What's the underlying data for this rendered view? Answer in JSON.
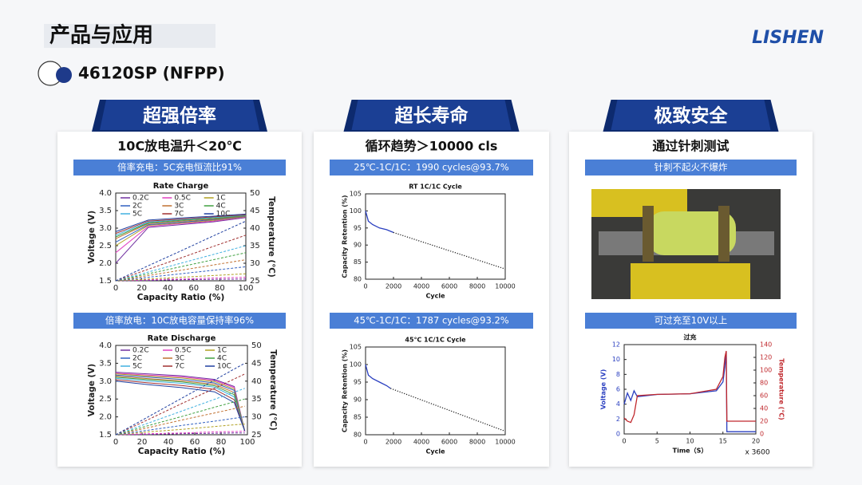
{
  "header": {
    "title": "产品与应用",
    "logo": "LISHEN",
    "subtitle": "46120SP (NFPP)"
  },
  "panels": [
    {
      "tab": "超强倍率",
      "headline": "10C放电温升＜20℃",
      "banners": [
        "倍率充电：5C充电恒流比91%",
        "倍率放电：10C放电容量保持率96%"
      ]
    },
    {
      "tab": "超长寿命",
      "headline": "循环趋势＞10000 cls",
      "banners": [
        "25℃-1C/1C：1990 cycles@93.7%",
        "45℃-1C/1C：1787 cycles@93.2%"
      ]
    },
    {
      "tab": "极致安全",
      "headline": "通过针刺测试",
      "banners": [
        "针刺不起火不爆炸",
        "可过充至10V以上"
      ]
    }
  ],
  "chart_data": [
    {
      "type": "line",
      "title": "Rate Charge",
      "x_label": "Capacity Ratio (%)",
      "y_label": "Voltage (V)",
      "y2_label": "Temperature (℃)",
      "xlim": [
        0,
        100
      ],
      "xticks": [
        0,
        20,
        40,
        60,
        80,
        100
      ],
      "ylim": [
        1.5,
        4.0
      ],
      "yticks": [
        1.5,
        {
          "value": 2,
          "label": "2.0"
        },
        2.5,
        {
          "value": 3,
          "label": "3.0"
        },
        3.5,
        {
          "value": 4,
          "label": "4.0"
        }
      ],
      "y2lim": [
        25,
        50
      ],
      "y2ticks": [
        25,
        30,
        35,
        40,
        45,
        50
      ],
      "legend": "top-left",
      "x": [
        0,
        25,
        50,
        75,
        100
      ],
      "series": [
        {
          "name": "0.2C",
          "color": "#7030a0",
          "values": [
            2.0,
            3.02,
            3.1,
            3.18,
            3.3
          ]
        },
        {
          "name": "0.5C",
          "color": "#e040c0",
          "values": [
            2.3,
            3.05,
            3.13,
            3.2,
            3.32
          ]
        },
        {
          "name": "1C",
          "color": "#b0a020",
          "values": [
            2.5,
            3.08,
            3.15,
            3.22,
            3.33
          ]
        },
        {
          "name": "2C",
          "color": "#3060c0",
          "values": [
            2.6,
            3.1,
            3.17,
            3.24,
            3.34
          ]
        },
        {
          "name": "3C",
          "color": "#c07030",
          "values": [
            2.7,
            3.13,
            3.2,
            3.26,
            3.35
          ]
        },
        {
          "name": "4C",
          "color": "#40a040",
          "values": [
            2.75,
            3.15,
            3.22,
            3.28,
            3.36
          ]
        },
        {
          "name": "5C",
          "color": "#40b0e0",
          "values": [
            2.8,
            3.17,
            3.24,
            3.3,
            3.37
          ]
        },
        {
          "name": "7C",
          "color": "#a03030",
          "values": [
            2.85,
            3.2,
            3.26,
            3.32,
            3.38
          ]
        },
        {
          "name": "10C",
          "color": "#2040a0",
          "values": [
            2.9,
            3.23,
            3.29,
            3.34,
            3.4
          ]
        },
        {
          "color": "#7030a0",
          "style": "dashed",
          "axis": "y2",
          "values": [
            25,
            25.1,
            25.3,
            25.4,
            25.5
          ]
        },
        {
          "color": "#e040c0",
          "style": "dashed",
          "axis": "y2",
          "values": [
            25,
            25.3,
            25.5,
            25.8,
            26
          ]
        },
        {
          "color": "#b0a020",
          "style": "dashed",
          "axis": "y2",
          "values": [
            25,
            25.5,
            26,
            26.5,
            27
          ]
        },
        {
          "color": "#3060c0",
          "style": "dashed",
          "axis": "y2",
          "values": [
            25,
            26,
            27,
            28,
            29
          ]
        },
        {
          "color": "#c07030",
          "style": "dashed",
          "axis": "y2",
          "values": [
            25,
            26.5,
            28,
            29.5,
            31
          ]
        },
        {
          "color": "#40a040",
          "style": "dashed",
          "axis": "y2",
          "values": [
            25,
            27,
            29,
            31,
            33
          ]
        },
        {
          "color": "#40b0e0",
          "style": "dashed",
          "axis": "y2",
          "values": [
            25,
            27.5,
            30,
            32.5,
            35
          ]
        },
        {
          "color": "#a03030",
          "style": "dashed",
          "axis": "y2",
          "values": [
            25,
            28.3,
            31.5,
            34.8,
            38
          ]
        },
        {
          "color": "#2040a0",
          "style": "dashed",
          "axis": "y2",
          "values": [
            25,
            29.3,
            33.5,
            37.8,
            42
          ]
        }
      ]
    },
    {
      "type": "line",
      "title": "Rate Discharge",
      "x_label": "Capacity Ratio (%)",
      "y_label": "Voltage (V)",
      "y2_label": "Temperature (℃)",
      "xlim": [
        0,
        100
      ],
      "xticks": [
        0,
        20,
        40,
        60,
        80,
        100
      ],
      "ylim": [
        1.5,
        4.0
      ],
      "yticks": [
        1.5,
        {
          "value": 2,
          "label": "2.0"
        },
        2.5,
        {
          "value": 3,
          "label": "3.0"
        },
        3.5,
        {
          "value": 4,
          "label": "4.0"
        }
      ],
      "y2lim": [
        25,
        50
      ],
      "y2ticks": [
        25,
        30,
        35,
        40,
        45,
        50
      ],
      "legend": "top-left",
      "x": [
        0,
        25,
        50,
        75,
        90,
        98
      ],
      "series": [
        {
          "name": "0.2C",
          "color": "#7030a0",
          "values": [
            3.25,
            3.2,
            3.15,
            3.05,
            2.85,
            1.6
          ]
        },
        {
          "name": "0.5C",
          "color": "#e040c0",
          "values": [
            3.22,
            3.17,
            3.12,
            3.02,
            2.82,
            1.6
          ]
        },
        {
          "name": "1C",
          "color": "#b0a020",
          "values": [
            3.2,
            3.14,
            3.09,
            2.99,
            2.78,
            1.6
          ]
        },
        {
          "name": "2C",
          "color": "#3060c0",
          "values": [
            3.17,
            3.11,
            3.05,
            2.95,
            2.74,
            1.6
          ]
        },
        {
          "name": "3C",
          "color": "#c07030",
          "values": [
            3.14,
            3.07,
            3.01,
            2.91,
            2.68,
            1.6
          ]
        },
        {
          "name": "4C",
          "color": "#40a040",
          "values": [
            3.11,
            3.04,
            2.98,
            2.87,
            2.62,
            1.6
          ]
        },
        {
          "name": "5C",
          "color": "#40b0e0",
          "values": [
            3.08,
            3.0,
            2.94,
            2.83,
            2.56,
            1.6
          ]
        },
        {
          "name": "7C",
          "color": "#a03030",
          "values": [
            3.04,
            2.95,
            2.88,
            2.77,
            2.48,
            1.6
          ]
        },
        {
          "name": "10C",
          "color": "#2040a0",
          "values": [
            3.0,
            2.9,
            2.82,
            2.7,
            2.4,
            1.6
          ]
        },
        {
          "color": "#7030a0",
          "style": "dashed",
          "axis": "y2",
          "values": [
            25,
            25.1,
            25.3,
            25.4,
            25.5,
            25.5
          ]
        },
        {
          "color": "#e040c0",
          "style": "dashed",
          "axis": "y2",
          "values": [
            25,
            25.3,
            25.5,
            25.8,
            25.9,
            26
          ]
        },
        {
          "color": "#b0a020",
          "style": "dashed",
          "axis": "y2",
          "values": [
            25,
            25.8,
            26.5,
            27.3,
            27.8,
            28
          ]
        },
        {
          "color": "#3060c0",
          "style": "dashed",
          "axis": "y2",
          "values": [
            25,
            26.3,
            27.6,
            28.8,
            29.6,
            30
          ]
        },
        {
          "color": "#c07030",
          "style": "dashed",
          "axis": "y2",
          "values": [
            25,
            27,
            29.1,
            31.1,
            32.3,
            33
          ]
        },
        {
          "color": "#40a040",
          "style": "dashed",
          "axis": "y2",
          "values": [
            25,
            27.6,
            30.1,
            32.7,
            34.2,
            35
          ]
        },
        {
          "color": "#40b0e0",
          "style": "dashed",
          "axis": "y2",
          "values": [
            25,
            28.3,
            31.6,
            34.9,
            36.9,
            38
          ]
        },
        {
          "color": "#a03030",
          "style": "dashed",
          "axis": "y2",
          "values": [
            25,
            29.3,
            33.7,
            38,
            40.6,
            42
          ]
        },
        {
          "color": "#2040a0",
          "style": "dashed",
          "axis": "y2",
          "values": [
            25,
            30.1,
            35.2,
            40.3,
            43.4,
            45
          ]
        }
      ]
    },
    {
      "type": "line",
      "title": "RT 1C/1C Cycle",
      "x_label": "Cycle",
      "y_label": "Capacity Retention (%)",
      "xlim": [
        0,
        10000
      ],
      "xticks": [
        0,
        2000,
        4000,
        6000,
        8000,
        10000
      ],
      "ylim": [
        80,
        105
      ],
      "yticks": [
        80,
        85,
        90,
        95,
        100,
        105
      ],
      "series": [
        {
          "color": "#2a3fc0",
          "x": [
            0,
            200,
            500,
            1000,
            1500,
            1990
          ],
          "values": [
            100,
            97,
            96,
            95,
            94.5,
            93.7
          ]
        },
        {
          "color": "#222222",
          "style": "dotted",
          "x": [
            1990,
            10000
          ],
          "values": [
            93.7,
            83
          ]
        }
      ]
    },
    {
      "type": "line",
      "title": "45℃ 1C/1C Cycle",
      "x_label": "Cycle",
      "y_label": "Capacity Retention (%)",
      "xlim": [
        0,
        10000
      ],
      "xticks": [
        0,
        2000,
        4000,
        6000,
        8000,
        10000
      ],
      "ylim": [
        80,
        105
      ],
      "yticks": [
        80,
        85,
        90,
        95,
        100,
        105
      ],
      "series": [
        {
          "color": "#2a3fc0",
          "x": [
            0,
            200,
            500,
            1000,
            1500,
            1787
          ],
          "values": [
            100,
            97,
            96,
            95,
            94,
            93.2
          ]
        },
        {
          "color": "#222222",
          "style": "dotted",
          "x": [
            1787,
            10000
          ],
          "values": [
            93.2,
            81
          ]
        }
      ]
    },
    {
      "type": "line",
      "title": "过充",
      "x_label": "Time（S）",
      "y_label": "Voltage (V)",
      "y2_label": "Temperature (℃)",
      "annotation": "x 3600",
      "y_axis_color": "#2a3fc0",
      "y2_axis_color": "#c0282d",
      "xlim": [
        0,
        20
      ],
      "xticks": [
        0,
        5,
        10,
        15,
        20
      ],
      "ylim": [
        0,
        12
      ],
      "yticks": [
        0,
        2,
        4,
        6,
        8,
        10,
        12
      ],
      "y2lim": [
        0,
        140
      ],
      "y2ticks": [
        0,
        20,
        40,
        60,
        80,
        100,
        120,
        140
      ],
      "x": [
        0,
        0.5,
        1,
        1.5,
        2,
        5,
        10,
        14,
        15,
        15.3,
        15.5,
        15.6,
        20
      ],
      "series": [
        {
          "color": "#2a3fc0",
          "values": [
            4,
            5.5,
            4.5,
            5.8,
            5,
            5.3,
            5.4,
            5.8,
            7,
            9,
            11,
            0.3,
            0.3
          ]
        },
        {
          "color": "#c0282d",
          "axis": "y2",
          "values": [
            25,
            20,
            18,
            30,
            60,
            62,
            63,
            70,
            90,
            120,
            130,
            20,
            20
          ]
        }
      ]
    }
  ]
}
